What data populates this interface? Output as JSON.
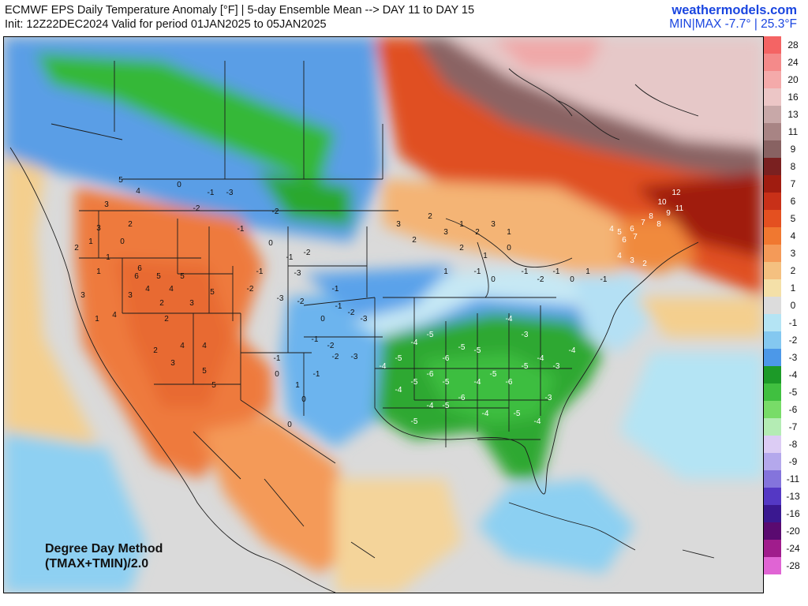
{
  "header": {
    "title_line1": "ECMWF EPS Daily Temperature Anomaly [°F] | 5-day Ensemble Mean --> DAY 11 to DAY 15",
    "title_line2": "Init: 12Z22DEC2024 Valid for period 01JAN2025 to 05JAN2025",
    "brand": "weathermodels.com",
    "minmax": "MIN|MAX -7.7° | 25.3°F"
  },
  "method": {
    "line1": "Degree Day Method",
    "line2": "(TMAX+TMIN)/2.0"
  },
  "legend": {
    "labels": [
      "28",
      "24",
      "20",
      "16",
      "13",
      "11",
      "9",
      "8",
      "7",
      "6",
      "5",
      "4",
      "3",
      "2",
      "1",
      "0",
      "-1",
      "-2",
      "-3",
      "-4",
      "-5",
      "-6",
      "-7",
      "-8",
      "-9",
      "-11",
      "-13",
      "-16",
      "-20",
      "-24",
      "-28"
    ],
    "colors": [
      "#f46464",
      "#f48a8a",
      "#f4aaaa",
      "#ecc6c6",
      "#c8a8a8",
      "#a88484",
      "#886262",
      "#7a2020",
      "#a01c10",
      "#c83018",
      "#e45020",
      "#f07830",
      "#f49a58",
      "#f4c080",
      "#f4e0a8",
      "#dcdcdc",
      "#b4e4f4",
      "#84c8f0",
      "#4c98e8",
      "#1c9a28",
      "#40c040",
      "#78dc68",
      "#b4ecb4",
      "#dcccf4",
      "#b4a8ec",
      "#8474dc",
      "#5438c4",
      "#3a1890",
      "#5a0a70",
      "#a01c8c",
      "#e064d4"
    ]
  },
  "map_labels": {
    "west": [
      "5",
      "4",
      "3",
      "2",
      "1",
      "0",
      "6",
      "4",
      "3",
      "2",
      "5",
      "4",
      "5",
      "3",
      "2",
      "1",
      "6",
      "5",
      "4",
      "3",
      "1",
      "4",
      "5",
      "5",
      "2",
      "3",
      "4",
      "3",
      "2",
      "1"
    ],
    "plains": [
      "0",
      "-1",
      "-2",
      "-3",
      "-1",
      "-2",
      "0",
      "-1",
      "-2",
      "-3",
      "-1",
      "-2",
      "-3",
      "-2",
      "-1",
      "0",
      "-1",
      "-2",
      "-3",
      "-1",
      "-2",
      "-3",
      "0",
      "1",
      "0",
      "-1",
      "-2",
      "-1",
      "0"
    ],
    "east_cold": [
      "-4",
      "-5",
      "-4",
      "-5",
      "-6",
      "-5",
      "-4",
      "-5",
      "-6",
      "-5",
      "-4",
      "-5",
      "-6",
      "-5",
      "-4",
      "-3",
      "-4",
      "-5",
      "-4",
      "-6",
      "-5",
      "-4",
      "-5",
      "-3",
      "-4",
      "-5",
      "-4",
      "-3"
    ],
    "north_warm": [
      "2",
      "3",
      "1",
      "2",
      "3",
      "1",
      "2",
      "0",
      "1",
      "2",
      "3",
      "1",
      "-1",
      "0",
      "-1",
      "-2",
      "-1",
      "0",
      "1",
      "-1"
    ],
    "northeast": [
      "4",
      "5",
      "6",
      "7",
      "8",
      "10",
      "12",
      "9",
      "11",
      "6",
      "7",
      "8",
      "4",
      "3",
      "2"
    ]
  }
}
